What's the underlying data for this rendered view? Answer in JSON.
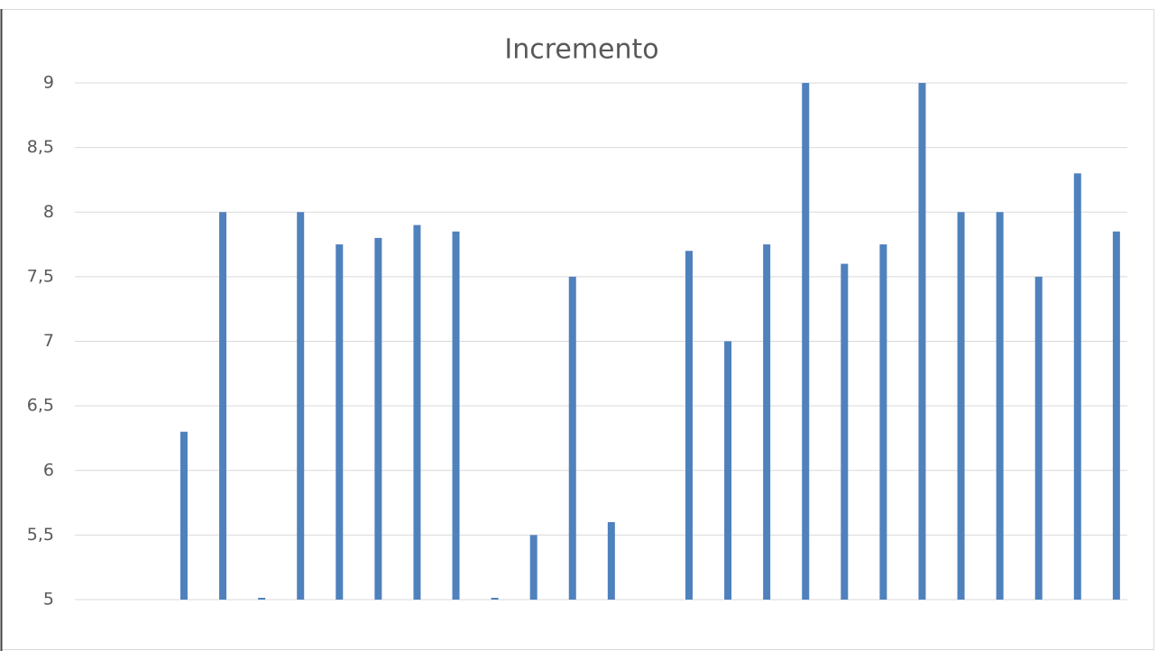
{
  "chart_data": {
    "type": "bar",
    "title": "Incremento",
    "categories": [
      null,
      null,
      null,
      null,
      null,
      null,
      null,
      null,
      null,
      null,
      null,
      null,
      null,
      null,
      null,
      null,
      null,
      null,
      null,
      null,
      null,
      null,
      null,
      null,
      null,
      null,
      null,
      null
    ],
    "values": [
      null,
      null,
      null,
      6.3,
      8,
      5,
      8,
      7.75,
      7.8,
      7.9,
      7.85,
      5,
      5.5,
      7.5,
      5.6,
      null,
      7.7,
      7,
      7.75,
      9,
      7.6,
      7.75,
      9,
      8,
      8,
      7.5,
      8.3,
      7.85
    ],
    "color": "#4f81bd",
    "ylim": [
      5,
      9
    ],
    "yticks": [
      5,
      {
        "value": 5.5,
        "label": "5,5"
      },
      6,
      {
        "value": 6.5,
        "label": "6,5"
      },
      7,
      {
        "value": 7.5,
        "label": "7,5"
      },
      8,
      {
        "value": 8.5,
        "label": "8,5"
      },
      9
    ],
    "grid": true
  }
}
